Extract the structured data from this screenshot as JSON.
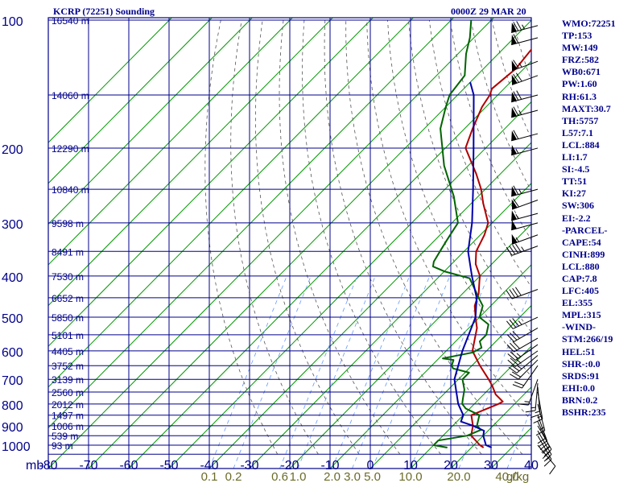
{
  "chart_data": {
    "type": "line",
    "title": "KCRP (72251) Sounding",
    "time": "0000Z 29 MAR 20",
    "x_axis_label": "mb",
    "temperature_ticks": [
      -80,
      -70,
      -60,
      -50,
      -40,
      -30,
      -20,
      -10,
      0,
      10,
      20,
      30,
      40
    ],
    "temperature_range": [
      -80,
      40
    ],
    "pressure_ticks": [
      100,
      200,
      300,
      400,
      500,
      600,
      700,
      800,
      900,
      1000
    ],
    "pressure_range": [
      100,
      1050
    ],
    "pressure_scale": "log",
    "mixing_ratio_label": "g/kg",
    "mixing_ratio_ticks": [
      {
        "label": "0.1",
        "value": -40
      },
      {
        "label": "0.2",
        "value": -34
      },
      {
        "label": "0.6",
        "value": -22.5
      },
      {
        "label": "1.0",
        "value": -18
      },
      {
        "label": "2.0",
        "value": -9.5
      },
      {
        "label": "3.0",
        "value": -4.5
      },
      {
        "label": "5.0",
        "value": 0.5
      },
      {
        "label": "10.0",
        "value": 10
      },
      {
        "label": "20.0",
        "value": 22
      },
      {
        "label": "40.0",
        "value": 34
      }
    ],
    "height_labels": [
      {
        "p": 100,
        "label": "16540 m"
      },
      {
        "p": 150,
        "label": "14060 m"
      },
      {
        "p": 200,
        "label": "12290 m"
      },
      {
        "p": 250,
        "label": "10840 m"
      },
      {
        "p": 300,
        "label": "9598 m"
      },
      {
        "p": 350,
        "label": "8491 m"
      },
      {
        "p": 400,
        "label": "7530 m"
      },
      {
        "p": 450,
        "label": "6652 m"
      },
      {
        "p": 500,
        "label": "5850 m"
      },
      {
        "p": 550,
        "label": "5101 m"
      },
      {
        "p": 600,
        "label": "4405 m"
      },
      {
        "p": 650,
        "label": "3752 m"
      },
      {
        "p": 700,
        "label": "3139 m"
      },
      {
        "p": 750,
        "label": "2560 m"
      },
      {
        "p": 800,
        "label": "2012 m"
      },
      {
        "p": 850,
        "label": "1497 m"
      },
      {
        "p": 900,
        "label": "1006 m"
      },
      {
        "p": 950,
        "label": "539 m"
      },
      {
        "p": 1000,
        "label": "93 m"
      }
    ],
    "series": [
      {
        "name": "",
        "color": "#b00000",
        "points": [
          [
            1013,
            23
          ],
          [
            1000,
            21.5
          ],
          [
            950,
            17
          ],
          [
            900,
            15
          ],
          [
            850,
            12
          ],
          [
            800,
            16
          ],
          [
            790,
            16.5
          ],
          [
            760,
            13
          ],
          [
            725,
            10
          ],
          [
            700,
            7.5
          ],
          [
            650,
            2
          ],
          [
            600,
            -3.5
          ],
          [
            560,
            -6
          ],
          [
            530,
            -8
          ],
          [
            500,
            -11
          ],
          [
            470,
            -14
          ],
          [
            440,
            -16
          ],
          [
            410,
            -19
          ],
          [
            400,
            -20
          ],
          [
            375,
            -24
          ],
          [
            350,
            -27
          ],
          [
            320,
            -29
          ],
          [
            300,
            -31
          ],
          [
            270,
            -37
          ],
          [
            250,
            -41
          ],
          [
            230,
            -46
          ],
          [
            200,
            -55
          ],
          [
            180,
            -58
          ],
          [
            160,
            -61
          ],
          [
            150,
            -62
          ],
          [
            145,
            -63
          ],
          [
            130,
            -62
          ],
          [
            115,
            -63
          ],
          [
            100,
            -65
          ]
        ]
      },
      {
        "name": "",
        "color": "#006400",
        "points": [
          [
            1013,
            14
          ],
          [
            1000,
            10
          ],
          [
            975,
            10
          ],
          [
            950,
            16
          ],
          [
            920,
            18
          ],
          [
            900,
            16
          ],
          [
            850,
            14
          ],
          [
            820,
            9
          ],
          [
            800,
            7
          ],
          [
            780,
            6
          ],
          [
            740,
            4
          ],
          [
            700,
            1
          ],
          [
            675,
            1
          ],
          [
            660,
            -4
          ],
          [
            650,
            -5
          ],
          [
            630,
            -6
          ],
          [
            625,
            -9
          ],
          [
            605,
            -3
          ],
          [
            590,
            -2
          ],
          [
            570,
            -4
          ],
          [
            550,
            -4
          ],
          [
            520,
            -6
          ],
          [
            500,
            -10
          ],
          [
            470,
            -12
          ],
          [
            450,
            -15
          ],
          [
            430,
            -18
          ],
          [
            405,
            -22
          ],
          [
            390,
            -30
          ],
          [
            380,
            -34
          ],
          [
            370,
            -35
          ],
          [
            350,
            -36
          ],
          [
            330,
            -37
          ],
          [
            310,
            -38
          ],
          [
            300,
            -38.5
          ],
          [
            260,
            -46
          ],
          [
            220,
            -56
          ],
          [
            180,
            -66
          ],
          [
            160,
            -70
          ],
          [
            150,
            -72
          ],
          [
            135,
            -73
          ],
          [
            120,
            -78
          ],
          [
            110,
            -81
          ],
          [
            100,
            -85
          ]
        ]
      },
      {
        "name": "",
        "color": "#0000aa",
        "points": [
          [
            1013,
            25
          ],
          [
            1000,
            23
          ],
          [
            950,
            20
          ],
          [
            925,
            19
          ],
          [
            900,
            15
          ],
          [
            880,
            11
          ],
          [
            850,
            10
          ],
          [
            800,
            6
          ],
          [
            700,
            -1
          ],
          [
            600,
            -6
          ],
          [
            500,
            -11
          ],
          [
            450,
            -15.5
          ],
          [
            400,
            -22
          ],
          [
            350,
            -29
          ],
          [
            300,
            -35
          ],
          [
            250,
            -43
          ],
          [
            200,
            -53
          ],
          [
            150,
            -66
          ],
          [
            140,
            -70
          ]
        ]
      }
    ],
    "wind_barbs": [
      {
        "p": 103,
        "dir": 255,
        "kt": 75
      },
      {
        "p": 110,
        "dir": 255,
        "kt": 60
      },
      {
        "p": 125,
        "dir": 250,
        "kt": 65
      },
      {
        "p": 135,
        "dir": 250,
        "kt": 70
      },
      {
        "p": 150,
        "dir": 255,
        "kt": 70
      },
      {
        "p": 163,
        "dir": 255,
        "kt": 65
      },
      {
        "p": 185,
        "dir": 255,
        "kt": 60
      },
      {
        "p": 200,
        "dir": 255,
        "kt": 55
      },
      {
        "p": 250,
        "dir": 255,
        "kt": 65
      },
      {
        "p": 265,
        "dir": 250,
        "kt": 60
      },
      {
        "p": 285,
        "dir": 255,
        "kt": 55
      },
      {
        "p": 300,
        "dir": 255,
        "kt": 50
      },
      {
        "p": 320,
        "dir": 250,
        "kt": 55
      },
      {
        "p": 340,
        "dir": 250,
        "kt": 45
      },
      {
        "p": 430,
        "dir": 250,
        "kt": 40
      },
      {
        "p": 500,
        "dir": 245,
        "kt": 35
      },
      {
        "p": 530,
        "dir": 240,
        "kt": 30
      },
      {
        "p": 560,
        "dir": 240,
        "kt": 30
      },
      {
        "p": 580,
        "dir": 235,
        "kt": 25
      },
      {
        "p": 600,
        "dir": 235,
        "kt": 25
      },
      {
        "p": 615,
        "dir": 230,
        "kt": 25
      },
      {
        "p": 630,
        "dir": 225,
        "kt": 20
      },
      {
        "p": 650,
        "dir": 215,
        "kt": 20
      },
      {
        "p": 700,
        "dir": 200,
        "kt": 15
      },
      {
        "p": 715,
        "dir": 185,
        "kt": 15
      },
      {
        "p": 730,
        "dir": 175,
        "kt": 15
      },
      {
        "p": 750,
        "dir": 170,
        "kt": 15
      },
      {
        "p": 800,
        "dir": 165,
        "kt": 15
      },
      {
        "p": 850,
        "dir": 160,
        "kt": 20
      },
      {
        "p": 880,
        "dir": 155,
        "kt": 20
      },
      {
        "p": 900,
        "dir": 150,
        "kt": 20
      },
      {
        "p": 925,
        "dir": 150,
        "kt": 20
      },
      {
        "p": 950,
        "dir": 150,
        "kt": 15
      },
      {
        "p": 1000,
        "dir": 140,
        "kt": 10
      }
    ]
  },
  "colors": {
    "frame": "#00008b",
    "isotherm": "#009900",
    "mixing_ratio": "#6699ff",
    "dry_adiabat": "#555555",
    "tick_text": "#00008b",
    "mix_text": "#6b6b2a",
    "barb": "#000000"
  },
  "indices": [
    "WMO:72251",
    "TP:153",
    "MW:149",
    "FRZ:582",
    "WB0:671",
    "PW:1.60",
    "RH:61.3",
    "MAXT:30.7",
    "TH:5757",
    "L57:7.1",
    "LCL:884",
    "LI:1.7",
    "SI:-4.5",
    "TT:51",
    "KI:27",
    "SW:306",
    "EI:-2.2",
    "-PARCEL-",
    "CAPE:54",
    "CINH:899",
    "LCL:880",
    "CAP:7.8",
    "LFC:405",
    "EL:355",
    "MPL:315",
    "-WIND-",
    "STM:266/19",
    "HEL:51",
    "SHR-:0.0",
    "SRDS:91",
    "EHI:0.0",
    "BRN:0.2",
    "BSHR:235"
  ]
}
